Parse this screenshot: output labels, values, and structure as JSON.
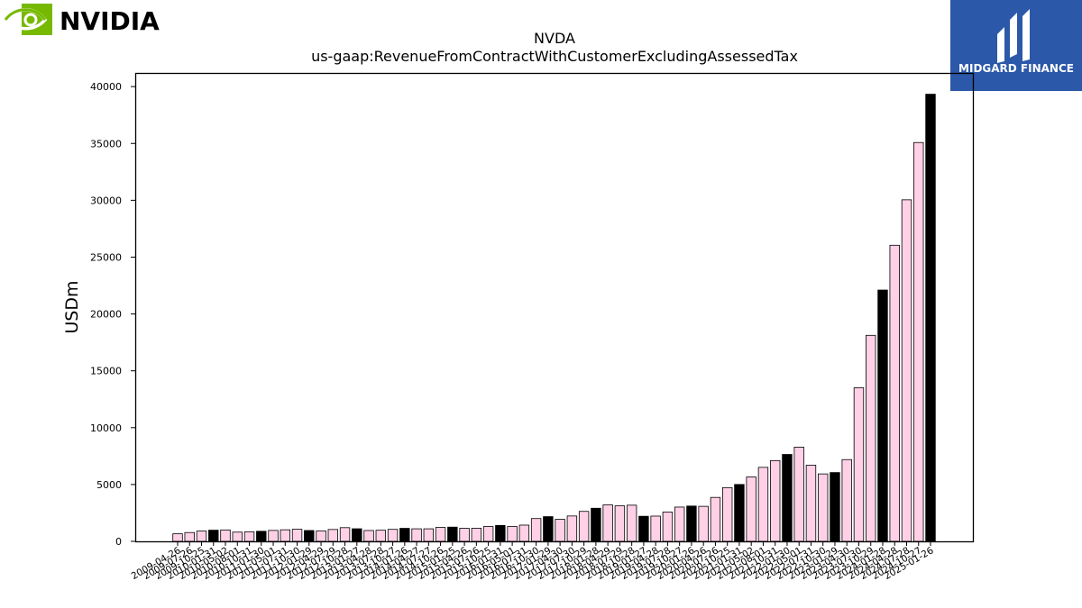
{
  "logos": {
    "left_text": "NVIDIA",
    "right_text": "MIDGARD FINANCE",
    "left_color": "#76b900",
    "right_bg": "#2b58a8"
  },
  "chart_data": {
    "type": "bar",
    "title": "NVDA",
    "subtitle": "us-gaap:RevenueFromContractWithCustomerExcludingAssessedTax",
    "xlabel": "",
    "ylabel": "USDm",
    "ylim": [
      0,
      41200
    ],
    "yticks": [
      0,
      5000,
      10000,
      15000,
      20000,
      25000,
      30000,
      35000,
      40000
    ],
    "grid": false,
    "colors": {
      "quarter": "#ffd0e6",
      "annual": "#000000",
      "edge": "#000000"
    },
    "categories": [
      "2009-04-26",
      "2009-07-26",
      "2009-10-25",
      "2010-01-31",
      "2010-05-02",
      "2010-08-01",
      "2010-10-31",
      "2011-01-30",
      "2011-05-01",
      "2011-07-31",
      "2011-10-30",
      "2012-01-29",
      "2012-04-29",
      "2012-07-29",
      "2012-10-28",
      "2013-01-27",
      "2013-04-28",
      "2013-07-28",
      "2013-10-27",
      "2014-01-26",
      "2014-04-27",
      "2014-07-27",
      "2014-10-26",
      "2015-01-25",
      "2015-04-26",
      "2015-07-26",
      "2015-10-25",
      "2016-01-31",
      "2016-05-01",
      "2016-07-31",
      "2016-10-30",
      "2017-01-29",
      "2017-04-30",
      "2017-07-30",
      "2017-10-29",
      "2018-01-28",
      "2018-04-29",
      "2018-07-29",
      "2018-10-28",
      "2019-01-27",
      "2019-04-28",
      "2019-07-28",
      "2019-10-27",
      "2020-01-26",
      "2020-04-26",
      "2020-07-26",
      "2020-10-25",
      "2021-01-31",
      "2021-05-02",
      "2021-08-01",
      "2021-10-31",
      "2022-01-30",
      "2022-05-01",
      "2022-07-31",
      "2022-10-30",
      "2023-01-29",
      "2023-04-30",
      "2023-07-30",
      "2023-10-29",
      "2024-01-28",
      "2024-04-28",
      "2024-07-28",
      "2024-10-27",
      "2025-01-26"
    ],
    "values": [
      664,
      776,
      903,
      982,
      1002,
      811,
      844,
      886,
      962,
      1017,
      1066,
      953,
      925,
      1044,
      1204,
      1107,
      954,
      977,
      1054,
      1144,
      1103,
      1103,
      1225,
      1251,
      1151,
      1153,
      1305,
      1401,
      1305,
      1428,
      2004,
      2173,
      1937,
      2230,
      2636,
      2911,
      3207,
      3123,
      3181,
      2205,
      2220,
      2579,
      3014,
      3105,
      3080,
      3866,
      4726,
      5003,
      5661,
      6507,
      7103,
      7643,
      8288,
      6704,
      5931,
      6051,
      7192,
      13507,
      18120,
      22103,
      26044,
      30040,
      35082,
      39331
    ],
    "annual_flags": [
      0,
      0,
      0,
      1,
      0,
      0,
      0,
      1,
      0,
      0,
      0,
      1,
      0,
      0,
      0,
      1,
      0,
      0,
      0,
      1,
      0,
      0,
      0,
      1,
      0,
      0,
      0,
      1,
      0,
      0,
      0,
      1,
      0,
      0,
      0,
      1,
      0,
      0,
      0,
      1,
      0,
      0,
      0,
      1,
      0,
      0,
      0,
      1,
      0,
      0,
      0,
      1,
      0,
      0,
      0,
      1,
      0,
      0,
      0,
      1,
      0,
      0,
      0,
      1
    ]
  }
}
